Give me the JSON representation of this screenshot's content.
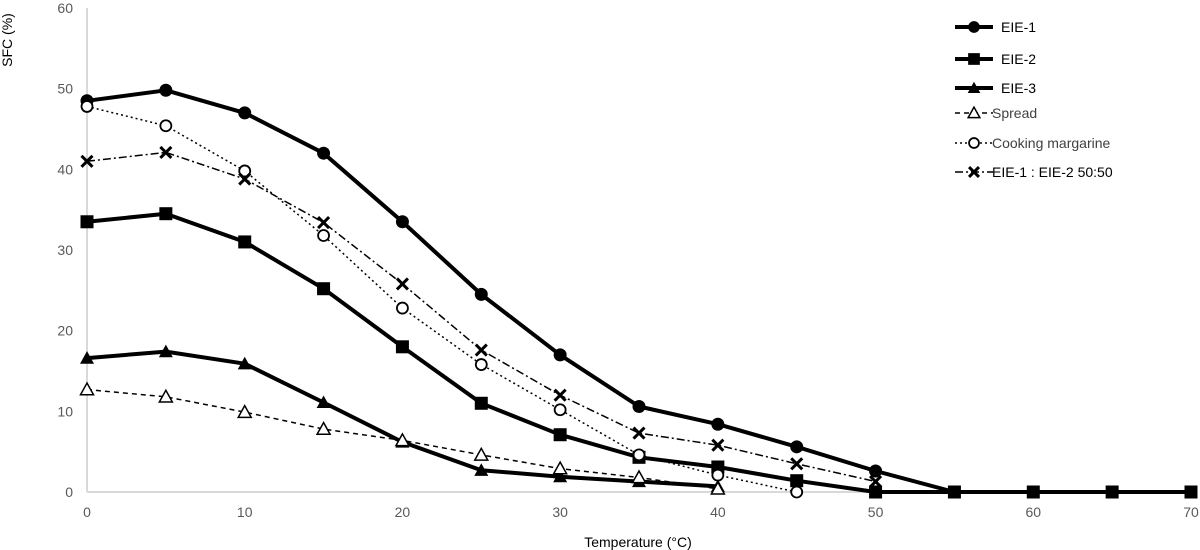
{
  "chart_data": {
    "type": "line",
    "title": "",
    "xlabel": "Temperature (°C)",
    "ylabel": "SFC (%)",
    "xlim": [
      0,
      70
    ],
    "ylim": [
      0,
      60
    ],
    "xticks": [
      0,
      10,
      20,
      30,
      40,
      50,
      60,
      70
    ],
    "yticks": [
      0,
      10,
      20,
      30,
      40,
      50,
      60
    ],
    "grid": false,
    "legend_position": "top-right",
    "series": [
      {
        "name": "EIE-1",
        "marker": "filled-circle",
        "line": "solid-thick",
        "color": "#000000",
        "points": [
          [
            0,
            48.5
          ],
          [
            5,
            49.8
          ],
          [
            10,
            47
          ],
          [
            15,
            42
          ],
          [
            20,
            33.5
          ],
          [
            25,
            24.5
          ],
          [
            30,
            17
          ],
          [
            35,
            10.6
          ],
          [
            40,
            8.4
          ],
          [
            45,
            5.6
          ],
          [
            50,
            2.6
          ],
          [
            55,
            0
          ],
          [
            60,
            0
          ],
          [
            65,
            0
          ],
          [
            70,
            0
          ]
        ]
      },
      {
        "name": "EIE-2",
        "marker": "filled-square",
        "line": "solid-thick",
        "color": "#000000",
        "points": [
          [
            0,
            33.5
          ],
          [
            5,
            34.5
          ],
          [
            10,
            31
          ],
          [
            15,
            25.2
          ],
          [
            20,
            18
          ],
          [
            25,
            11
          ],
          [
            30,
            7.1
          ],
          [
            35,
            4.3
          ],
          [
            40,
            3.1
          ],
          [
            45,
            1.4
          ],
          [
            50,
            0
          ],
          [
            55,
            0
          ],
          [
            60,
            0
          ],
          [
            65,
            0
          ],
          [
            70,
            0
          ]
        ]
      },
      {
        "name": "EIE-3",
        "marker": "filled-triangle",
        "line": "solid-thick",
        "color": "#000000",
        "points": [
          [
            0,
            16.6
          ],
          [
            5,
            17.4
          ],
          [
            10,
            15.9
          ],
          [
            15,
            11.1
          ],
          [
            20,
            6.2
          ],
          [
            25,
            2.7
          ],
          [
            30,
            1.9
          ],
          [
            35,
            1.3
          ],
          [
            40,
            0.7
          ]
        ]
      },
      {
        "name": "Spread",
        "marker": "open-triangle",
        "line": "dashed",
        "color": "#000000",
        "points": [
          [
            0,
            12.7
          ],
          [
            5,
            11.8
          ],
          [
            10,
            9.9
          ],
          [
            15,
            7.8
          ],
          [
            20,
            6.4
          ],
          [
            25,
            4.6
          ],
          [
            30,
            2.9
          ],
          [
            35,
            1.8
          ],
          [
            40,
            0.4
          ]
        ]
      },
      {
        "name": "Cooking margarine",
        "marker": "open-circle",
        "line": "dotted",
        "color": "#000000",
        "points": [
          [
            0,
            47.8
          ],
          [
            5,
            45.4
          ],
          [
            10,
            39.8
          ],
          [
            15,
            31.8
          ],
          [
            20,
            22.8
          ],
          [
            25,
            15.8
          ],
          [
            30,
            10.2
          ],
          [
            35,
            4.6
          ],
          [
            40,
            2.1
          ],
          [
            45,
            0
          ]
        ]
      },
      {
        "name": "EIE-1 : EIE-2 50:50",
        "marker": "x",
        "line": "dash-dot",
        "color": "#000000",
        "points": [
          [
            0,
            41
          ],
          [
            5,
            42.1
          ],
          [
            10,
            38.8
          ],
          [
            15,
            33.4
          ],
          [
            20,
            25.8
          ],
          [
            25,
            17.6
          ],
          [
            30,
            12
          ],
          [
            35,
            7.3
          ],
          [
            40,
            5.8
          ],
          [
            45,
            3.5
          ],
          [
            50,
            1.3
          ]
        ]
      }
    ]
  }
}
